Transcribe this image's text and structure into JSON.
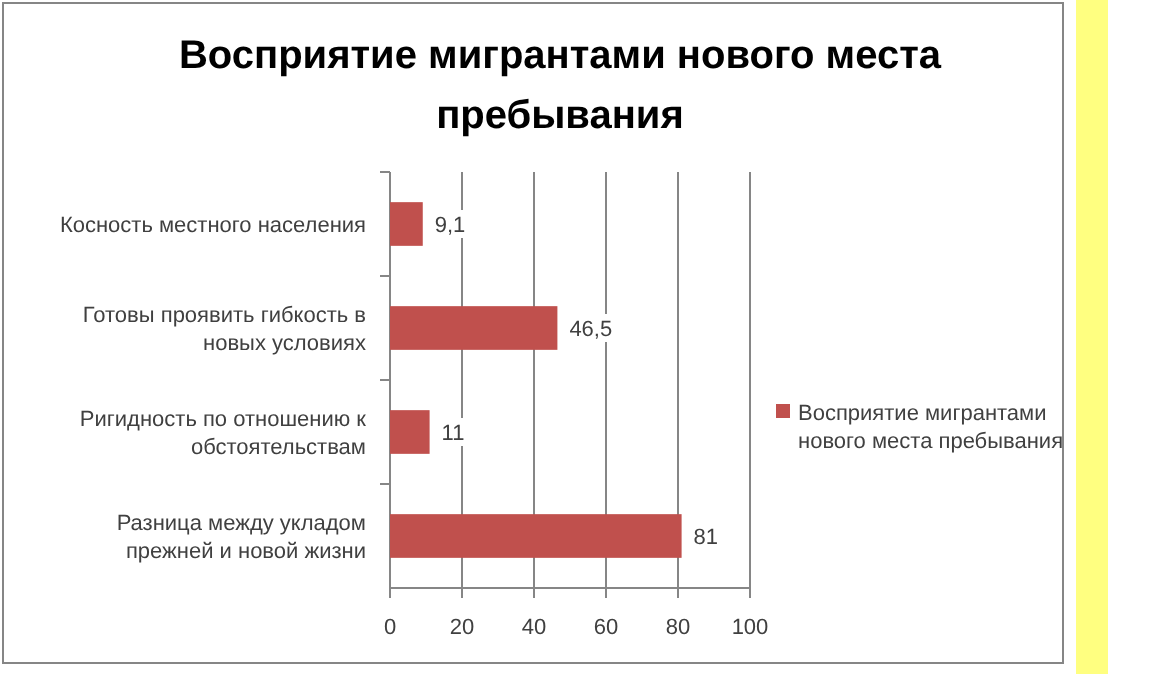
{
  "chart_data": {
    "type": "bar",
    "orientation": "horizontal",
    "title": "Восприятие мигрантами нового места пребывания",
    "categories": [
      "Косность местного населения",
      "Готовы проявить гибкость в новых условиях",
      "Ригидность по отношению к обстоятельствам",
      "Разница между укладом прежней и новой жизни"
    ],
    "series": [
      {
        "name": "Восприятие мигрантами нового места пребывания",
        "color": "#c0504d",
        "values": [
          9.1,
          46.5,
          11,
          81
        ],
        "value_labels": [
          "9,1",
          "46,5",
          "11",
          "81"
        ]
      }
    ],
    "xlim": [
      0,
      100
    ],
    "xticks": [
      0,
      20,
      40,
      60,
      80,
      100
    ],
    "grid": "x",
    "legend": "right"
  }
}
